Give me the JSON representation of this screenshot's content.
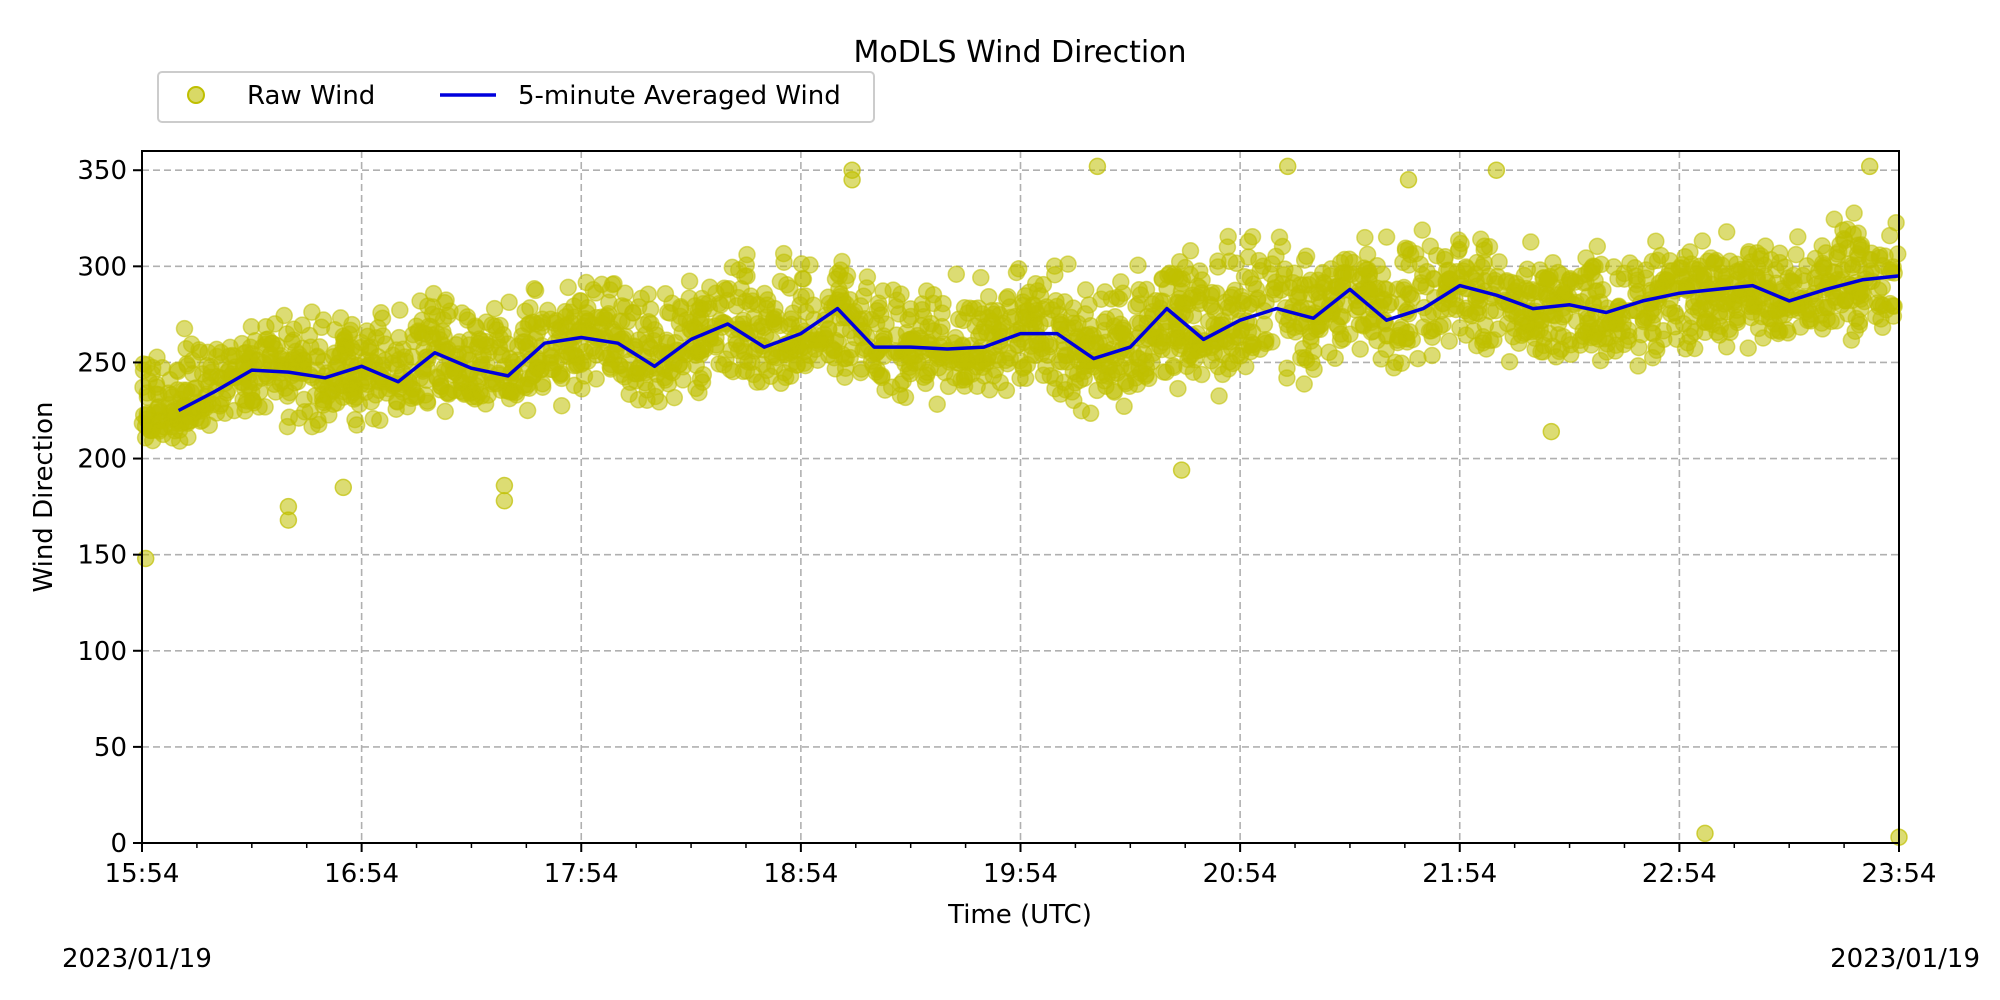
{
  "chart_data": {
    "type": "scatter",
    "title": "MoDLS Wind Direction",
    "xlabel": "Time (UTC)",
    "ylabel": "Wind Direction",
    "xlim": [
      "2023-01-19T15:54Z",
      "2023-01-19T23:54Z"
    ],
    "ylim": [
      0,
      360
    ],
    "x_ticks": [
      "15:54",
      "16:54",
      "17:54",
      "18:54",
      "19:54",
      "20:54",
      "21:54",
      "22:54",
      "23:54"
    ],
    "y_ticks": [
      0,
      50,
      100,
      150,
      200,
      250,
      300,
      350
    ],
    "grid": true,
    "legend": {
      "placement": "top-left, above plot",
      "ncol": 2
    },
    "dates": {
      "start": "2023/01/19",
      "end": "2023/01/19"
    },
    "series": [
      {
        "name": "Raw Wind",
        "kind": "scatter",
        "color": "#bfbf00",
        "note_cloud_band": "dense point cloud spreading roughly ±45 deg around the averaged line",
        "band_x": [
          "15:54",
          "16:24",
          "16:54",
          "17:24",
          "17:54",
          "18:24",
          "18:54",
          "19:24",
          "19:54",
          "20:24",
          "20:54",
          "21:24",
          "21:54",
          "22:24",
          "22:54",
          "23:24",
          "23:54"
        ],
        "band_low": [
          200,
          205,
          210,
          215,
          220,
          222,
          225,
          222,
          220,
          218,
          230,
          235,
          245,
          240,
          245,
          248,
          250
        ],
        "band_high": [
          275,
          282,
          290,
          300,
          300,
          305,
          320,
          300,
          305,
          310,
          330,
          330,
          330,
          320,
          320,
          330,
          340
        ],
        "outliers": [
          {
            "x": "15:55",
            "y": 148
          },
          {
            "x": "16:34",
            "y": 168
          },
          {
            "x": "16:34",
            "y": 175
          },
          {
            "x": "16:49",
            "y": 185
          },
          {
            "x": "17:33",
            "y": 178
          },
          {
            "x": "17:33",
            "y": 186
          },
          {
            "x": "19:08",
            "y": 345
          },
          {
            "x": "19:08",
            "y": 350
          },
          {
            "x": "20:15",
            "y": 352
          },
          {
            "x": "21:07",
            "y": 352
          },
          {
            "x": "21:40",
            "y": 345
          },
          {
            "x": "22:04",
            "y": 350
          },
          {
            "x": "22:19",
            "y": 214
          },
          {
            "x": "20:38",
            "y": 194
          },
          {
            "x": "23:01",
            "y": 5
          },
          {
            "x": "23:54",
            "y": 3
          },
          {
            "x": "23:46",
            "y": 352
          }
        ]
      },
      {
        "name": "5-minute Averaged Wind",
        "kind": "line",
        "color": "#0000dd",
        "x": [
          "16:04",
          "16:14",
          "16:24",
          "16:34",
          "16:44",
          "16:54",
          "17:04",
          "17:14",
          "17:24",
          "17:34",
          "17:44",
          "17:54",
          "18:04",
          "18:14",
          "18:24",
          "18:34",
          "18:44",
          "18:54",
          "19:04",
          "19:14",
          "19:24",
          "19:34",
          "19:44",
          "19:54",
          "20:04",
          "20:14",
          "20:24",
          "20:34",
          "20:44",
          "20:54",
          "21:04",
          "21:14",
          "21:24",
          "21:34",
          "21:44",
          "21:54",
          "22:04",
          "22:14",
          "22:24",
          "22:34",
          "22:44",
          "22:54",
          "23:04",
          "23:14",
          "23:24",
          "23:34",
          "23:44",
          "23:54"
        ],
        "values": [
          225,
          235,
          246,
          245,
          242,
          248,
          240,
          255,
          247,
          243,
          260,
          263,
          260,
          248,
          262,
          270,
          258,
          265,
          278,
          258,
          258,
          257,
          258,
          265,
          265,
          252,
          258,
          278,
          262,
          272,
          278,
          273,
          288,
          272,
          278,
          290,
          285,
          278,
          280,
          276,
          282,
          286,
          288,
          290,
          282,
          288,
          293,
          295
        ]
      }
    ]
  }
}
